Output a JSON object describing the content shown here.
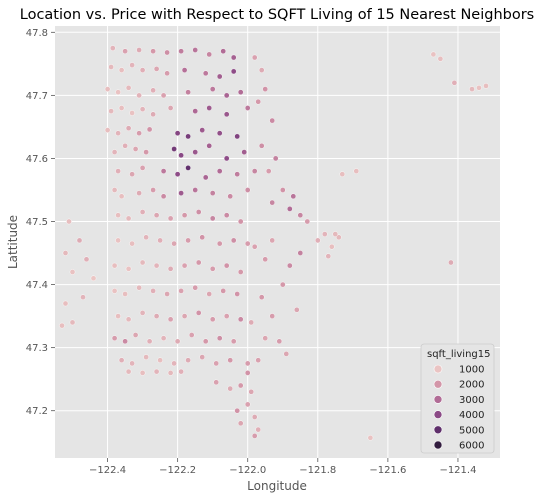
{
  "chart_data": {
    "type": "scatter",
    "title": "Location vs. Price with Respect to SQFT Living of 15 Nearest Neighbors",
    "xlabel": "Longitude",
    "ylabel": "Lattitude",
    "xlim": [
      -122.55,
      -121.28
    ],
    "ylim": [
      47.125,
      47.81
    ],
    "x_ticks": [
      -122.4,
      -122.2,
      -122.0,
      -121.8,
      -121.6,
      -121.4
    ],
    "x_tick_labels": [
      "−122.4",
      "−122.2",
      "−122.0",
      "−121.8",
      "−121.6",
      "−121.4"
    ],
    "y_ticks": [
      47.2,
      47.3,
      47.4,
      47.5,
      47.6,
      47.7,
      47.8
    ],
    "y_tick_labels": [
      "47.2",
      "47.3",
      "47.4",
      "47.5",
      "47.6",
      "47.7",
      "47.8"
    ],
    "grid": true,
    "style": "ggplot",
    "legend": {
      "title": "sqft_living15",
      "placement": "lower-right",
      "entries": [
        {
          "label": "1000",
          "color": "#eac4c3"
        },
        {
          "label": "2000",
          "color": "#d396a8"
        },
        {
          "label": "3000",
          "color": "#b16c96"
        },
        {
          "label": "4000",
          "color": "#8b4a86"
        },
        {
          "label": "5000",
          "color": "#5f2f6b"
        },
        {
          "label": "6000",
          "color": "#321c3e"
        }
      ]
    },
    "color_scale": {
      "min": 400,
      "max": 6200,
      "colors": [
        "#f2dbd8",
        "#eac4c3",
        "#d396a8",
        "#b16c96",
        "#8b4a86",
        "#5f2f6b",
        "#321c3e"
      ]
    },
    "points": [
      [
        -122.385,
        47.775,
        1700
      ],
      [
        -122.35,
        47.77,
        2100
      ],
      [
        -122.31,
        47.772,
        1900
      ],
      [
        -122.27,
        47.77,
        2300
      ],
      [
        -122.23,
        47.768,
        2500
      ],
      [
        -122.19,
        47.77,
        2900
      ],
      [
        -122.15,
        47.772,
        3100
      ],
      [
        -122.11,
        47.765,
        2700
      ],
      [
        -122.07,
        47.77,
        3300
      ],
      [
        -122.04,
        47.76,
        3600
      ],
      [
        -122.39,
        47.745,
        1600
      ],
      [
        -122.36,
        47.74,
        1500
      ],
      [
        -122.33,
        47.748,
        1700
      ],
      [
        -122.3,
        47.74,
        1800
      ],
      [
        -122.26,
        47.742,
        2000
      ],
      [
        -122.23,
        47.735,
        2200
      ],
      [
        -122.18,
        47.74,
        3200
      ],
      [
        -122.12,
        47.735,
        3000
      ],
      [
        -122.08,
        47.73,
        3700
      ],
      [
        -122.04,
        47.738,
        4200
      ],
      [
        -122.4,
        47.71,
        1500
      ],
      [
        -122.37,
        47.705,
        1400
      ],
      [
        -122.34,
        47.712,
        1600
      ],
      [
        -122.31,
        47.7,
        1700
      ],
      [
        -122.27,
        47.708,
        1800
      ],
      [
        -122.24,
        47.7,
        2100
      ],
      [
        -122.17,
        47.705,
        2800
      ],
      [
        -122.1,
        47.71,
        3000
      ],
      [
        -122.06,
        47.7,
        3500
      ],
      [
        -122.02,
        47.705,
        3300
      ],
      [
        -122.39,
        47.675,
        1600
      ],
      [
        -122.36,
        47.68,
        1500
      ],
      [
        -122.33,
        47.672,
        1400
      ],
      [
        -122.3,
        47.678,
        1700
      ],
      [
        -122.27,
        47.67,
        1900
      ],
      [
        -122.22,
        47.68,
        2000
      ],
      [
        -122.15,
        47.675,
        3400
      ],
      [
        -122.11,
        47.68,
        3800
      ],
      [
        -122.06,
        47.67,
        3900
      ],
      [
        -122.0,
        47.68,
        3000
      ],
      [
        -122.4,
        47.645,
        1500
      ],
      [
        -122.37,
        47.64,
        1700
      ],
      [
        -122.34,
        47.648,
        1900
      ],
      [
        -122.31,
        47.64,
        2200
      ],
      [
        -122.28,
        47.646,
        2400
      ],
      [
        -122.2,
        47.64,
        4400
      ],
      [
        -122.17,
        47.635,
        4700
      ],
      [
        -122.13,
        47.645,
        3800
      ],
      [
        -122.08,
        47.64,
        4100
      ],
      [
        -122.03,
        47.635,
        4500
      ],
      [
        -122.38,
        47.61,
        1700
      ],
      [
        -122.35,
        47.62,
        1800
      ],
      [
        -122.32,
        47.615,
        2000
      ],
      [
        -122.29,
        47.61,
        2300
      ],
      [
        -122.21,
        47.615,
        4800
      ],
      [
        -122.19,
        47.605,
        4300
      ],
      [
        -122.15,
        47.61,
        3900
      ],
      [
        -122.11,
        47.62,
        3600
      ],
      [
        -122.06,
        47.6,
        4200
      ],
      [
        -122.01,
        47.61,
        3700
      ],
      [
        -122.37,
        47.58,
        1800
      ],
      [
        -122.33,
        47.575,
        2000
      ],
      [
        -122.3,
        47.585,
        2100
      ],
      [
        -122.24,
        47.58,
        3000
      ],
      [
        -122.2,
        47.575,
        4200
      ],
      [
        -122.17,
        47.585,
        5200
      ],
      [
        -122.12,
        47.57,
        3500
      ],
      [
        -122.08,
        47.58,
        3300
      ],
      [
        -122.03,
        47.575,
        2900
      ],
      [
        -121.98,
        47.58,
        2700
      ],
      [
        -122.38,
        47.55,
        1600
      ],
      [
        -122.36,
        47.54,
        1500
      ],
      [
        -122.31,
        47.545,
        1900
      ],
      [
        -122.27,
        47.55,
        2200
      ],
      [
        -122.24,
        47.54,
        2600
      ],
      [
        -122.19,
        47.545,
        3800
      ],
      [
        -122.15,
        47.55,
        3100
      ],
      [
        -122.1,
        47.545,
        2800
      ],
      [
        -122.05,
        47.54,
        2600
      ],
      [
        -122.0,
        47.55,
        2500
      ],
      [
        -122.37,
        47.51,
        1500
      ],
      [
        -122.34,
        47.505,
        1600
      ],
      [
        -122.3,
        47.515,
        1800
      ],
      [
        -122.26,
        47.51,
        2000
      ],
      [
        -122.22,
        47.505,
        2100
      ],
      [
        -122.18,
        47.51,
        2300
      ],
      [
        -122.14,
        47.515,
        2500
      ],
      [
        -122.1,
        47.505,
        2700
      ],
      [
        -122.06,
        47.51,
        2600
      ],
      [
        -122.02,
        47.5,
        2400
      ],
      [
        -122.37,
        47.47,
        1400
      ],
      [
        -122.33,
        47.465,
        1500
      ],
      [
        -122.29,
        47.475,
        1700
      ],
      [
        -122.25,
        47.47,
        1800
      ],
      [
        -122.21,
        47.465,
        2000
      ],
      [
        -122.17,
        47.47,
        2200
      ],
      [
        -122.13,
        47.475,
        2400
      ],
      [
        -122.08,
        47.465,
        2300
      ],
      [
        -122.04,
        47.47,
        2500
      ],
      [
        -122.0,
        47.465,
        2200
      ],
      [
        -122.38,
        47.43,
        1500
      ],
      [
        -122.34,
        47.425,
        1400
      ],
      [
        -122.3,
        47.435,
        1600
      ],
      [
        -122.26,
        47.43,
        1700
      ],
      [
        -122.22,
        47.425,
        1900
      ],
      [
        -122.18,
        47.43,
        2100
      ],
      [
        -122.14,
        47.435,
        2300
      ],
      [
        -122.1,
        47.425,
        2200
      ],
      [
        -122.06,
        47.43,
        2400
      ],
      [
        -122.02,
        47.42,
        2300
      ],
      [
        -122.38,
        47.39,
        1400
      ],
      [
        -122.35,
        47.385,
        1500
      ],
      [
        -122.31,
        47.395,
        1600
      ],
      [
        -122.27,
        47.39,
        1800
      ],
      [
        -122.23,
        47.385,
        2000
      ],
      [
        -122.19,
        47.39,
        2100
      ],
      [
        -122.15,
        47.395,
        2200
      ],
      [
        -122.11,
        47.385,
        2000
      ],
      [
        -122.07,
        47.39,
        2300
      ],
      [
        -122.03,
        47.385,
        2400
      ],
      [
        -122.37,
        47.35,
        1500
      ],
      [
        -122.34,
        47.345,
        1600
      ],
      [
        -122.3,
        47.355,
        1700
      ],
      [
        -122.26,
        47.35,
        1900
      ],
      [
        -122.22,
        47.345,
        2100
      ],
      [
        -122.18,
        47.35,
        2000
      ],
      [
        -122.14,
        47.355,
        2400
      ],
      [
        -122.1,
        47.345,
        2200
      ],
      [
        -122.06,
        47.35,
        2100
      ],
      [
        -122.02,
        47.345,
        2600
      ],
      [
        -122.38,
        47.315,
        2200
      ],
      [
        -122.35,
        47.31,
        2600
      ],
      [
        -122.32,
        47.32,
        2000
      ],
      [
        -122.28,
        47.31,
        1800
      ],
      [
        -122.24,
        47.315,
        1700
      ],
      [
        -122.2,
        47.31,
        1900
      ],
      [
        -122.16,
        47.32,
        2100
      ],
      [
        -122.12,
        47.31,
        2300
      ],
      [
        -122.08,
        47.315,
        2500
      ],
      [
        -122.04,
        47.31,
        2200
      ],
      [
        -122.36,
        47.28,
        1800
      ],
      [
        -122.33,
        47.275,
        1700
      ],
      [
        -122.29,
        47.285,
        1600
      ],
      [
        -122.25,
        47.28,
        1500
      ],
      [
        -122.21,
        47.275,
        1700
      ],
      [
        -122.17,
        47.28,
        1900
      ],
      [
        -122.13,
        47.285,
        2000
      ],
      [
        -122.09,
        47.275,
        2100
      ],
      [
        -122.05,
        47.28,
        2300
      ],
      [
        -122.0,
        47.275,
        2200
      ],
      [
        -122.34,
        47.262,
        1600
      ],
      [
        -122.3,
        47.26,
        1500
      ],
      [
        -122.26,
        47.262,
        1700
      ],
      [
        -122.22,
        47.26,
        1600
      ],
      [
        -122.19,
        47.262,
        1800
      ],
      [
        -122.09,
        47.245,
        2100
      ],
      [
        -122.05,
        47.235,
        1900
      ],
      [
        -122.02,
        47.24,
        2300
      ],
      [
        -121.99,
        47.23,
        2000
      ],
      [
        -122.03,
        47.2,
        2400
      ],
      [
        -122.0,
        47.21,
        2100
      ],
      [
        -121.98,
        47.19,
        1900
      ],
      [
        -122.02,
        47.18,
        2000
      ],
      [
        -121.97,
        47.17,
        1800
      ],
      [
        -121.98,
        47.16,
        2200
      ],
      [
        -122.51,
        47.5,
        1500
      ],
      [
        -122.52,
        47.45,
        1600
      ],
      [
        -122.5,
        47.42,
        1400
      ],
      [
        -122.47,
        47.38,
        1700
      ],
      [
        -122.52,
        47.37,
        1500
      ],
      [
        -122.5,
        47.34,
        1600
      ],
      [
        -122.46,
        47.44,
        1800
      ],
      [
        -122.44,
        47.41,
        1300
      ],
      [
        -122.48,
        47.47,
        1900
      ],
      [
        -122.53,
        47.335,
        1500
      ],
      [
        -121.98,
        47.76,
        2100
      ],
      [
        -121.96,
        47.74,
        1900
      ],
      [
        -121.95,
        47.71,
        2400
      ],
      [
        -121.97,
        47.69,
        2300
      ],
      [
        -121.93,
        47.66,
        2600
      ],
      [
        -121.96,
        47.62,
        2500
      ],
      [
        -121.92,
        47.6,
        2800
      ],
      [
        -121.94,
        47.58,
        2200
      ],
      [
        -121.9,
        47.55,
        2400
      ],
      [
        -121.93,
        47.53,
        2700
      ],
      [
        -121.87,
        47.54,
        3100
      ],
      [
        -121.88,
        47.52,
        3300
      ],
      [
        -121.85,
        47.51,
        2700
      ],
      [
        -121.83,
        47.5,
        2200
      ],
      [
        -121.78,
        47.48,
        1700
      ],
      [
        -121.74,
        47.475,
        1600
      ],
      [
        -121.76,
        47.46,
        1500
      ],
      [
        -121.8,
        47.47,
        1800
      ],
      [
        -121.77,
        47.445,
        1700
      ],
      [
        -121.75,
        47.48,
        1600
      ],
      [
        -121.98,
        47.46,
        2100
      ],
      [
        -121.95,
        47.44,
        2200
      ],
      [
        -121.93,
        47.47,
        2000
      ],
      [
        -121.96,
        47.38,
        2300
      ],
      [
        -121.99,
        47.34,
        1900
      ],
      [
        -121.95,
        47.315,
        2000
      ],
      [
        -121.91,
        47.31,
        2200
      ],
      [
        -121.97,
        47.28,
        2100
      ],
      [
        -122.0,
        47.26,
        2400
      ],
      [
        -121.89,
        47.29,
        2000
      ],
      [
        -121.88,
        47.43,
        2600
      ],
      [
        -121.9,
        47.4,
        2300
      ],
      [
        -121.85,
        47.45,
        2800
      ],
      [
        -121.86,
        47.36,
        2000
      ],
      [
        -121.93,
        47.35,
        2200
      ],
      [
        -121.65,
        47.157,
        1400
      ],
      [
        -121.73,
        47.575,
        1500
      ],
      [
        -121.47,
        47.765,
        1400
      ],
      [
        -121.45,
        47.758,
        1500
      ],
      [
        -121.41,
        47.72,
        1800
      ],
      [
        -121.36,
        47.71,
        1600
      ],
      [
        -121.34,
        47.712,
        1400
      ],
      [
        -121.32,
        47.715,
        1500
      ],
      [
        -121.42,
        47.435,
        1900
      ],
      [
        -121.69,
        47.58,
        1500
      ]
    ]
  }
}
